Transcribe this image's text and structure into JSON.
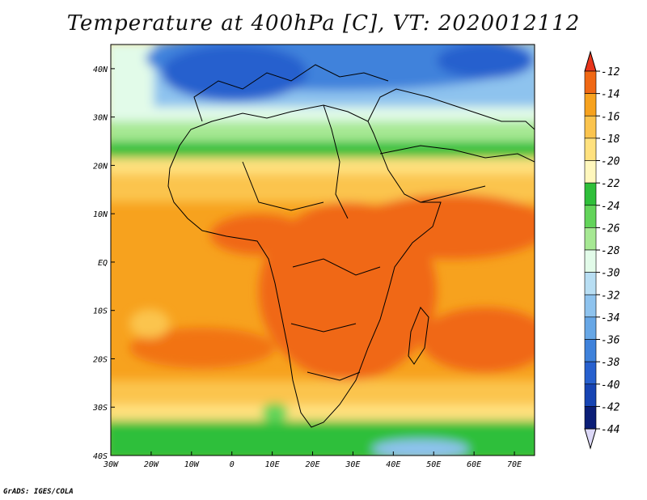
{
  "title": "Temperature at 400hPa [C], VT: 2020012112",
  "credit": "GrADS: IGES/COLA",
  "map": {
    "lon_labels": [
      "30W",
      "20W",
      "10W",
      "0",
      "10E",
      "20E",
      "30E",
      "40E",
      "50E",
      "60E",
      "70E"
    ],
    "lat_labels": [
      "40N",
      "30N",
      "20N",
      "10N",
      "EQ",
      "10S",
      "20S",
      "30S",
      "40S"
    ],
    "lon_range": [
      -30,
      75
    ],
    "lat_range": [
      -40,
      45
    ]
  },
  "colorbar": {
    "labels": [
      "-12",
      "-14",
      "-16",
      "-18",
      "-20",
      "-22",
      "-24",
      "-26",
      "-28",
      "-30",
      "-32",
      "-34",
      "-36",
      "-38",
      "-40",
      "-42",
      "-44"
    ],
    "colors": [
      "#e8351c",
      "#f06814",
      "#f7a21e",
      "#fbc44e",
      "#ffe17e",
      "#fff7bd",
      "#2fbf3a",
      "#63d45a",
      "#a6e893",
      "#e2fbe9",
      "#b8def3",
      "#8ec3ee",
      "#67a7e6",
      "#3f82db",
      "#2760ce",
      "#1744b3",
      "#0b1e77",
      "#dcd8f7"
    ]
  }
}
